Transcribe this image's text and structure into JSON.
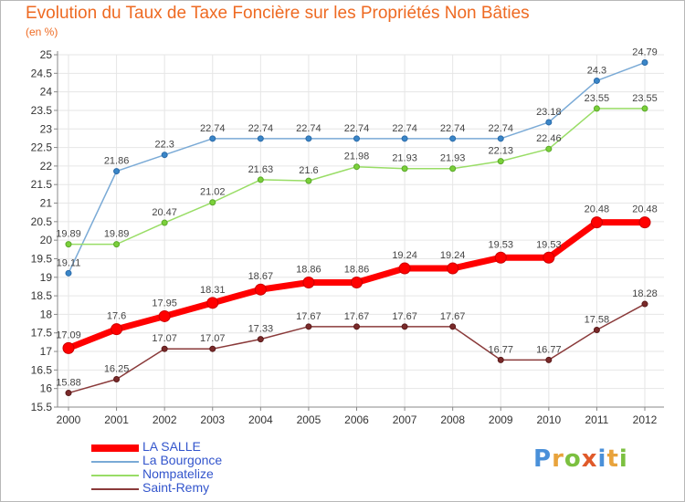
{
  "header": {
    "title": "Evolution du Taux de Taxe Foncière sur les Propriétés Non Bâties",
    "unit": "(en %)"
  },
  "logo": {
    "text": "Proxiti",
    "letter_colors": [
      "#4a90d9",
      "#e8a33c",
      "#7cc040",
      "#e05a2a",
      "#4a90d9",
      "#e8a33c",
      "#7cc040"
    ]
  },
  "colors": {
    "title": "#ee6a22",
    "axis": "#888888",
    "grid": "#e6e6e6",
    "tick_text": "#333333",
    "legend_text": "#3355cc"
  },
  "chart_data": {
    "type": "line",
    "title": "Evolution du Taux de Taxe Foncière sur les Propriétés Non Bâties",
    "xlabel": "",
    "ylabel": "(en %)",
    "x": [
      "2000",
      "2001",
      "2002",
      "2003",
      "2004",
      "2005",
      "2006",
      "2007",
      "2008",
      "2009",
      "2010",
      "2011",
      "2012"
    ],
    "ylim": [
      15.5,
      25
    ],
    "yticks": [
      "15.5",
      "16",
      "16.5",
      "17",
      "17.5",
      "18",
      "18.5",
      "19",
      "19.5",
      "20",
      "20.5",
      "21",
      "21.5",
      "22",
      "22.5",
      "23",
      "23.5",
      "24",
      "24.5",
      "25"
    ],
    "grid": true,
    "legend_position": "bottom-left",
    "series": [
      {
        "name": "LA SALLE",
        "color": "#ff0000",
        "values": [
          17.09,
          17.6,
          17.95,
          18.31,
          18.67,
          18.86,
          18.86,
          19.24,
          19.24,
          19.53,
          19.53,
          20.48,
          20.48
        ],
        "labels": [
          "17.09",
          "17.6",
          "17.95",
          "18.31",
          "18.67",
          "18.86",
          "18.86",
          "19.24",
          "19.24",
          "19.53",
          "19.53",
          "20.48",
          "20.48"
        ]
      },
      {
        "name": "La Bourgonce",
        "color": "#7aaad6",
        "values": [
          19.11,
          21.86,
          22.3,
          22.74,
          22.74,
          22.74,
          22.74,
          22.74,
          22.74,
          22.74,
          23.18,
          24.3,
          24.79
        ],
        "labels": [
          "19.11",
          "21.86",
          "22.3",
          "22.74",
          "22.74",
          "22.74",
          "22.74",
          "22.74",
          "22.74",
          "22.74",
          "23.18",
          "24.3",
          "24.79"
        ]
      },
      {
        "name": "Nompatelize",
        "color": "#99dd66",
        "values": [
          19.89,
          19.89,
          20.47,
          21.02,
          21.63,
          21.6,
          21.98,
          21.93,
          21.93,
          22.13,
          22.46,
          23.55,
          23.55
        ],
        "labels": [
          "19.89",
          "19.89",
          "20.47",
          "21.02",
          "21.63",
          "21.6",
          "21.98",
          "21.93",
          "21.93",
          "22.13",
          "22.46",
          "23.55",
          "23.55"
        ]
      },
      {
        "name": "Saint-Remy",
        "color": "#8a3a3a",
        "values": [
          15.88,
          16.25,
          17.07,
          17.07,
          17.33,
          17.67,
          17.67,
          17.67,
          17.67,
          16.77,
          16.77,
          17.58,
          18.28
        ],
        "labels": [
          "15.88",
          "16.25",
          "17.07",
          "17.07",
          "17.33",
          "17.67",
          "17.67",
          "17.67",
          "17.67",
          "16.77",
          "16.77",
          "17.58",
          "18.28"
        ]
      }
    ]
  }
}
